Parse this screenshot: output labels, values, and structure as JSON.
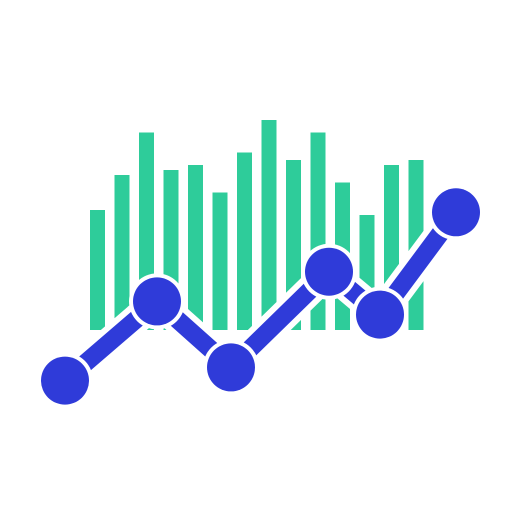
{
  "icon": {
    "name": "analytics-trend-icon",
    "background": "#ffffff",
    "bar_color": "#2ecc9a",
    "line_color": "#2f3bd9",
    "outline_color": "#ffffff",
    "bars": [
      {
        "level": 0.48
      },
      {
        "level": 0.62
      },
      {
        "level": 0.79
      },
      {
        "level": 0.64
      },
      {
        "level": 0.66
      },
      {
        "level": 0.55
      },
      {
        "level": 0.71
      },
      {
        "level": 0.84
      },
      {
        "level": 0.68
      },
      {
        "level": 0.79
      },
      {
        "level": 0.59
      },
      {
        "level": 0.46
      },
      {
        "level": 0.66
      },
      {
        "level": 0.68
      }
    ],
    "trend_points": [
      {
        "level": 0.18
      },
      {
        "level": 0.42
      },
      {
        "level": 0.22
      },
      {
        "level": 0.51
      },
      {
        "level": 0.38
      },
      {
        "level": 0.69
      }
    ]
  }
}
